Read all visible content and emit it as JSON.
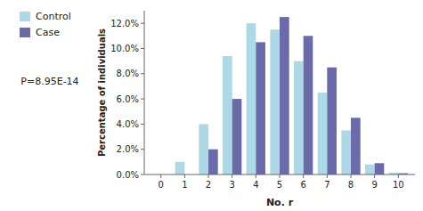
{
  "chart_data": {
    "type": "bar",
    "x": [
      0,
      1,
      2,
      3,
      4,
      5,
      6,
      7,
      8,
      9,
      10
    ],
    "xlim": [
      -0.7,
      10.7
    ],
    "xticks": [
      0,
      1,
      2,
      3,
      4,
      5,
      6,
      7,
      8,
      9,
      10
    ],
    "series": [
      {
        "name": "Control",
        "color": "#add8e6",
        "values": [
          0.0,
          1.0,
          4.0,
          9.4,
          12.0,
          11.5,
          9.0,
          6.5,
          3.5,
          0.8,
          0.15
        ]
      },
      {
        "name": "Case",
        "color": "#6b6bab",
        "values": [
          0.0,
          0.0,
          2.0,
          6.0,
          10.5,
          12.5,
          11.0,
          8.5,
          4.5,
          0.9,
          0.1
        ]
      }
    ],
    "x_label": "No. r",
    "y_label": "Percentage of individuals",
    "ylim": [
      0,
      13.0
    ],
    "yticks": [
      {
        "value": 0.0,
        "label": "0.0%"
      },
      {
        "value": 2.0,
        "label": "2.0%"
      },
      {
        "value": 4.0,
        "label": "4.0%"
      },
      {
        "value": 6.0,
        "label": "6.0%"
      },
      {
        "value": 8.0,
        "label": "8.0%"
      },
      {
        "value": 10.0,
        "label": "10.0%"
      },
      {
        "value": 12.0,
        "label": "12.0%"
      }
    ],
    "annotations": [
      {
        "text": "P=8.95E-14"
      }
    ],
    "legend": "left",
    "grid": false
  }
}
